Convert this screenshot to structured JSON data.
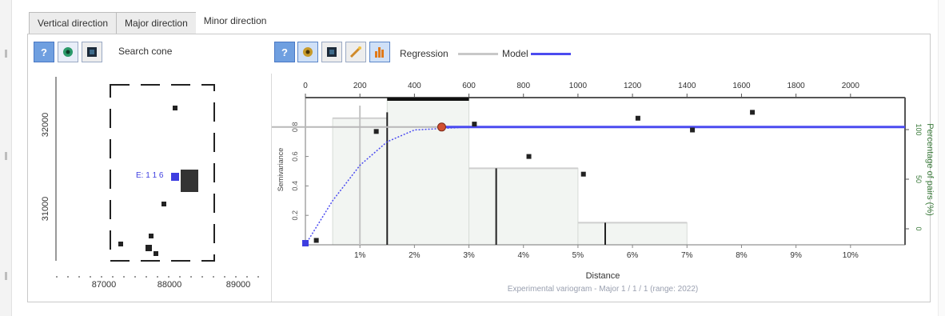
{
  "tabs": [
    {
      "label": "Vertical direction"
    },
    {
      "label": "Major direction"
    },
    {
      "label": "Minor direction"
    }
  ],
  "search_cone": {
    "help_icon": "question-icon",
    "eye_icon": "eye-icon",
    "camera_icon": "camera-icon",
    "label": "Search cone",
    "y_ticks": [
      "32000",
      "31000"
    ],
    "x_ticks": [
      "87000",
      "88000",
      "89000"
    ],
    "center_label": "E: 1 1 6"
  },
  "variogram_toolbar": {
    "help_icon": "question-icon",
    "eye_icon": "eye-icon",
    "camera_icon": "camera-icon",
    "fit_icon": "wand-icon",
    "histogram_icon": "histogram-icon",
    "regression_label": "Regression",
    "model_label": "Model",
    "regression_color": "#c8c8c8",
    "model_color": "#4b4bf0"
  },
  "chart_data": {
    "type": "line",
    "top_axis": {
      "ticks": [
        "0",
        "200",
        "400",
        "600",
        "800",
        "1000",
        "1200",
        "1400",
        "1600",
        "1800",
        "2000"
      ],
      "range": [
        0,
        2200
      ]
    },
    "bottom_axis": {
      "ticks": [
        "1%",
        "2%",
        "3%",
        "4%",
        "5%",
        "6%",
        "7%",
        "8%",
        "9%",
        "10%"
      ],
      "xlabel": "Distance",
      "range": [
        0,
        11
      ]
    },
    "left_axis": {
      "ylabel": "Semivariance",
      "ticks": [
        "0.8",
        "0.6",
        "0.4",
        "0.2"
      ],
      "range": [
        0,
        1
      ]
    },
    "right_axis": {
      "label": "Percentage of pairs (%)",
      "ticks": [
        "100",
        "50",
        "0"
      ]
    },
    "footer": "Experimental variogram - Major 1 / 1 / 1 (range: 2022)",
    "histogram": [
      {
        "x0": 0.5,
        "x1": 1.5,
        "value": 0.86
      },
      {
        "x0": 1.5,
        "x1": 3.0,
        "value": 1.0
      },
      {
        "x0": 3.0,
        "x1": 5.0,
        "value": 0.52
      },
      {
        "x0": 5.0,
        "x1": 7.0,
        "value": 0.15
      }
    ],
    "series": [
      {
        "name": "Regression",
        "x": [
          0.2,
          1.3,
          3.1,
          4.1,
          5.1,
          6.1,
          7.1,
          8.2
        ],
        "y": [
          0.03,
          0.77,
          0.82,
          0.6,
          0.48,
          0.86,
          0.78,
          0.9
        ]
      },
      {
        "name": "Model",
        "x": [
          0.0,
          0.5,
          1.0,
          1.5,
          2.0,
          2.5,
          3.0,
          11
        ],
        "y": [
          0.0,
          0.3,
          0.54,
          0.7,
          0.78,
          0.8,
          0.8,
          0.8
        ]
      }
    ],
    "sill": 0.8,
    "ranges": [
      {
        "x": 1.5,
        "height": 0.9,
        "color": "#222"
      },
      {
        "x": 3.5,
        "height": 0.52,
        "color": "#222"
      },
      {
        "x": 5.5,
        "height": 0.15,
        "color": "#222"
      }
    ]
  }
}
